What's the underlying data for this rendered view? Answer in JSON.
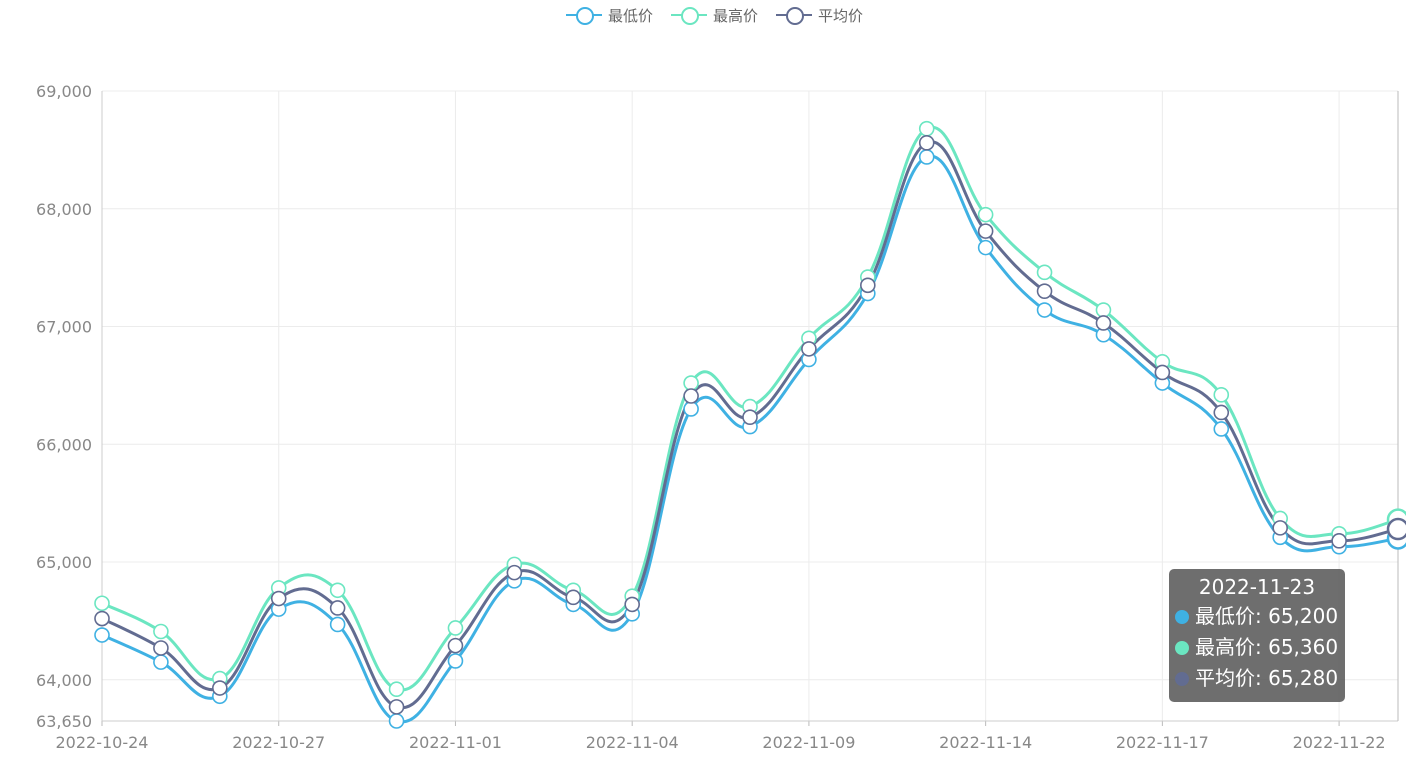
{
  "chart_data": {
    "type": "line",
    "smooth": true,
    "categories": [
      "2022-10-24",
      "2022-10-25",
      "2022-10-26",
      "2022-10-27",
      "2022-10-28",
      "2022-10-31",
      "2022-11-01",
      "2022-11-02",
      "2022-11-03",
      "2022-11-04",
      "2022-11-07",
      "2022-11-08",
      "2022-11-09",
      "2022-11-10",
      "2022-11-11",
      "2022-11-14",
      "2022-11-15",
      "2022-11-16",
      "2022-11-17",
      "2022-11-18",
      "2022-11-21",
      "2022-11-22",
      "2022-11-23"
    ],
    "x_tick_labels": [
      "2022-10-24",
      "2022-10-27",
      "2022-11-01",
      "2022-11-04",
      "2022-11-09",
      "2022-11-14",
      "2022-11-17",
      "2022-11-22"
    ],
    "series": [
      {
        "name": "最低价",
        "color": "#3fb1e3",
        "values": [
          64380,
          64150,
          63860,
          64600,
          64470,
          63650,
          64160,
          64840,
          64640,
          64560,
          66300,
          66150,
          66720,
          67280,
          68440,
          67670,
          67140,
          66930,
          66520,
          66130,
          65210,
          65130,
          65200
        ]
      },
      {
        "name": "最高价",
        "color": "#6be6c1",
        "values": [
          64650,
          64410,
          64010,
          64780,
          64760,
          63920,
          64440,
          64980,
          64760,
          64710,
          66520,
          66320,
          66900,
          67420,
          68680,
          67950,
          67460,
          67140,
          66700,
          66420,
          65370,
          65240,
          65360
        ]
      },
      {
        "name": "平均价",
        "color": "#626c91",
        "values": [
          64520,
          64270,
          63930,
          64690,
          64610,
          63770,
          64290,
          64910,
          64700,
          64640,
          66410,
          66230,
          66810,
          67350,
          68560,
          67810,
          67300,
          67030,
          66610,
          66270,
          65290,
          65180,
          65280
        ]
      }
    ],
    "ylim": [
      63650,
      69000
    ],
    "y_ticks": [
      63650,
      64000,
      65000,
      66000,
      67000,
      68000,
      69000
    ],
    "y_tick_labels": [
      "63,650",
      "64,000",
      "65,000",
      "66,000",
      "67,000",
      "68,000",
      "69,000"
    ],
    "grid": true,
    "legend_position": "top-center",
    "tooltip": {
      "title": "2022-11-23",
      "rows": [
        {
          "label": "最低价: 65,200",
          "color": "#3fb1e3"
        },
        {
          "label": "最高价: 65,360",
          "color": "#6be6c1"
        },
        {
          "label": "平均价: 65,280",
          "color": "#626c91"
        }
      ]
    }
  }
}
